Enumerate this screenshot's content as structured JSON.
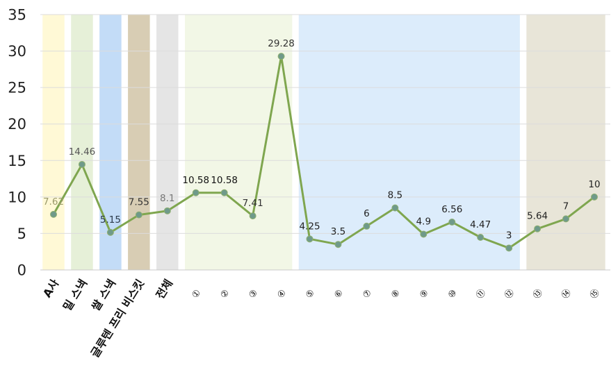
{
  "chart_data": {
    "type": "line",
    "title": "",
    "xlabel": "",
    "ylabel": "",
    "ylim": [
      0,
      35
    ],
    "yticks": [
      0,
      5,
      10,
      15,
      20,
      25,
      30,
      35
    ],
    "grid": true,
    "categories": [
      "A사",
      "밀 스낵",
      "쌀 스낵",
      "글루텐 프리 비스킷",
      "전체",
      "①",
      "②",
      "③",
      "④",
      "⑤",
      "⑥",
      "⑦",
      "⑧",
      "⑨",
      "⑩",
      "⑪",
      "⑫",
      "⑬",
      "⑭",
      "⑮"
    ],
    "series": [
      {
        "values": [
          7.62,
          14.46,
          5.15,
          7.55,
          8.1,
          10.58,
          10.58,
          7.41,
          29.28,
          4.25,
          3.5,
          6,
          8.5,
          4.9,
          6.56,
          4.47,
          3,
          5.64,
          7,
          10
        ],
        "labels": [
          "7.62",
          "14.46",
          "5.15",
          "7.55",
          "8.1",
          "10.58",
          "10.58",
          "7.41",
          "29.28",
          "4.25",
          "3.5",
          "6",
          "8.5",
          "4.9",
          "6.56",
          "4.47",
          "3",
          "5.64",
          "7",
          "10"
        ],
        "line_color": "#7fa64f",
        "marker_color": "#6f9a8a"
      }
    ],
    "background_bands": [
      {
        "from": 0,
        "to": 0,
        "color": "#fff9d6"
      },
      {
        "from": 1,
        "to": 1,
        "color": "#e6f0d8"
      },
      {
        "from": 2,
        "to": 2,
        "color": "#c3dcf7"
      },
      {
        "from": 3,
        "to": 3,
        "color": "#d8cdb4"
      },
      {
        "from": 4,
        "to": 4,
        "color": "#e5e5e5"
      },
      {
        "from": 5,
        "to": 8,
        "color": "#f2f7e6"
      },
      {
        "from": 9,
        "to": 16,
        "color": "#dcecfb"
      },
      {
        "from": 17,
        "to": 19,
        "color": "#e8e5d8"
      }
    ],
    "label_colors": [
      "#9a9a6a",
      "#555555",
      "#2b3a4a",
      "#333333",
      "#777777",
      "#111111",
      "#111111",
      "#333333",
      "#333333",
      "#222222",
      "#222222",
      "#222222",
      "#222222",
      "#222222",
      "#222222",
      "#222222",
      "#222222",
      "#222222",
      "#222222",
      "#222222"
    ]
  }
}
